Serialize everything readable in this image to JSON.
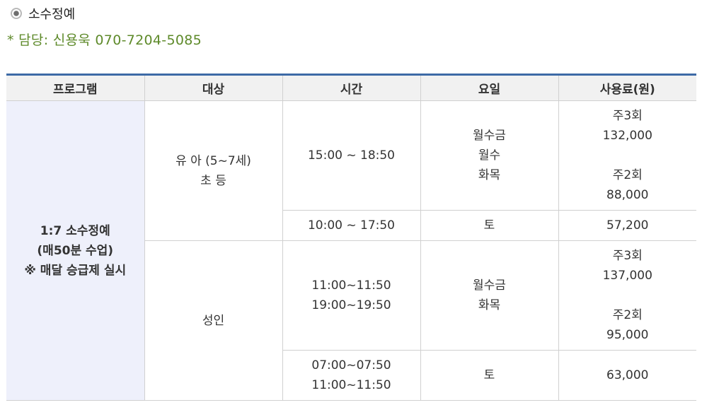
{
  "section": {
    "title": "소수정예",
    "bullet_icon": "radio-bullet-icon"
  },
  "contact": {
    "text": "* 담당: 신용욱 070-7204-5085"
  },
  "colors": {
    "header_border": "#3d6aa6",
    "contact_text": "#5e8a2a",
    "program_cell_bg": "#eef0fb"
  },
  "table": {
    "headers": [
      "프로그램",
      "대상",
      "시간",
      "요일",
      "사용료(원)"
    ],
    "program": {
      "lines": [
        "1:7 소수정예",
        "(매50분 수업)",
        "※ 매달 승급제 실시"
      ]
    },
    "groups": [
      {
        "target_lines": [
          "유 아 (5~7세)",
          "초 등"
        ],
        "rows": [
          {
            "time_lines": [
              "15:00 ~ 18:50"
            ],
            "day_lines": [
              "월수금",
              "월수",
              "화목"
            ],
            "fee_blocks": [
              {
                "label": "주3회",
                "amount": "132,000"
              },
              {
                "label": "주2회",
                "amount": "88,000"
              }
            ]
          },
          {
            "time_lines": [
              "10:00 ~ 17:50"
            ],
            "day_lines": [
              "토"
            ],
            "fee": "57,200"
          }
        ]
      },
      {
        "target_lines": [
          "성인"
        ],
        "rows": [
          {
            "time_lines": [
              "11:00~11:50",
              "19:00~19:50"
            ],
            "day_lines": [
              "월수금",
              "화목"
            ],
            "fee_blocks": [
              {
                "label": "주3회",
                "amount": "137,000"
              },
              {
                "label": "주2회",
                "amount": "95,000"
              }
            ]
          },
          {
            "time_lines": [
              "07:00~07:50",
              "11:00~11:50"
            ],
            "day_lines": [
              "토"
            ],
            "fee": "63,000"
          }
        ]
      }
    ]
  }
}
